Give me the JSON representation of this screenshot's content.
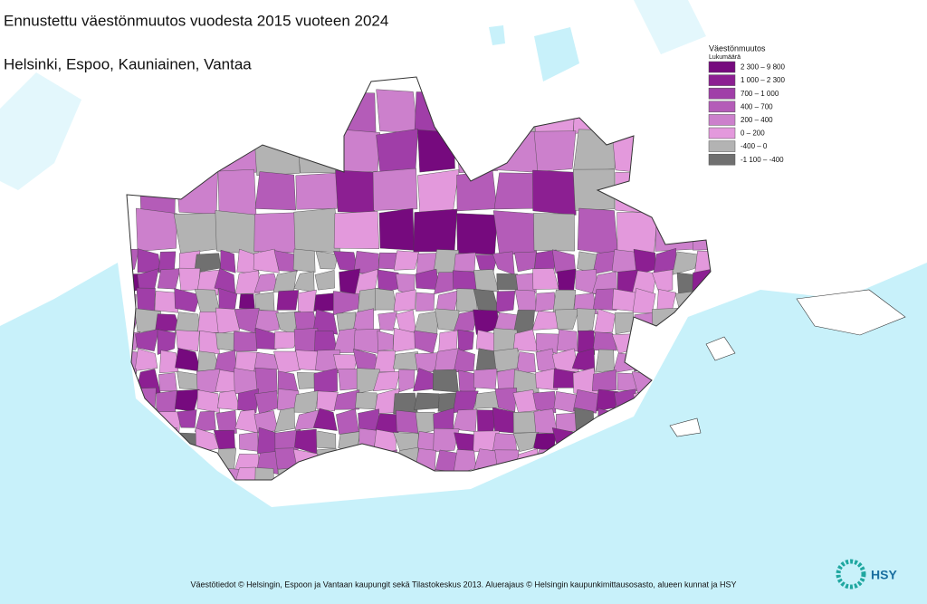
{
  "header": {
    "title": "Ennustettu väestönmuutos vuodesta 2015 vuoteen 2024",
    "subtitle": "Helsinki, Espoo, Kauniainen, Vantaa"
  },
  "legend": {
    "title": "Väestönmuutos",
    "unit": "Lukumäärä",
    "entries": [
      {
        "label": "2 300  –  9 800",
        "color": "#760a7e"
      },
      {
        "label": "1 000  –  2 300",
        "color": "#8c1f92"
      },
      {
        "label": "700  –  1 000",
        "color": "#a03ea8"
      },
      {
        "label": "400  –  700",
        "color": "#b45cb8"
      },
      {
        "label": "200  –  400",
        "color": "#cc80cc"
      },
      {
        "label": "0  –  200",
        "color": "#e399dc"
      },
      {
        "label": "-400  –  0",
        "color": "#b3b3b3"
      },
      {
        "label": "-1 100  –  -400",
        "color": "#707070"
      }
    ]
  },
  "footer": {
    "source": "Väestötiedot © Helsingin, Espoon ja Vantaan kaupungit sekä Tilastokeskus 2013. Aluerajaus © Helsingin kaupunkimittausosasto, alueen kunnat ja HSY",
    "logo": "HSY"
  }
}
